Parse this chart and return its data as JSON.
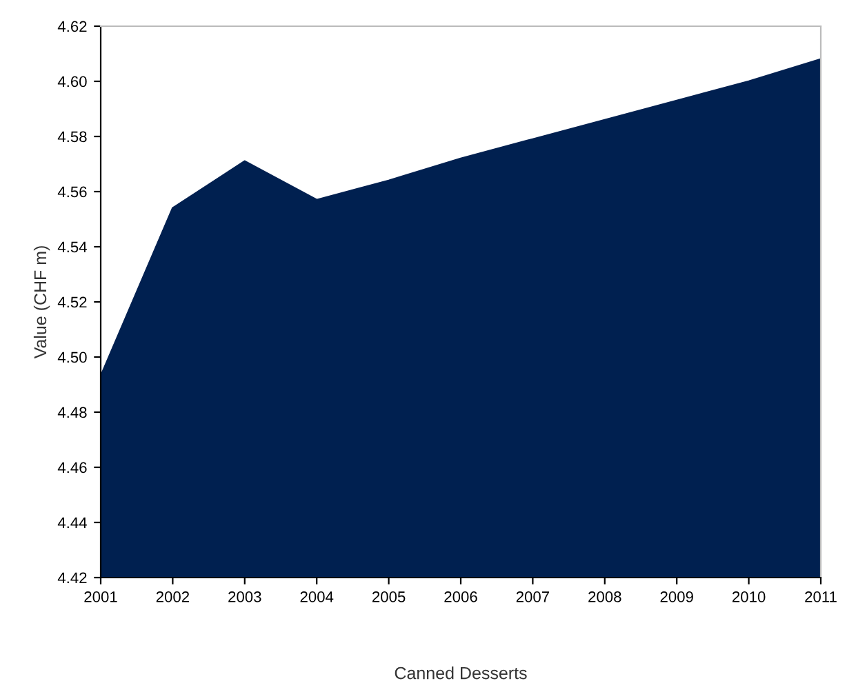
{
  "chart_data": {
    "type": "area",
    "xlabel": "Canned Desserts",
    "ylabel": "Value (CHF m)",
    "x": [
      2001,
      2002,
      2003,
      2004,
      2005,
      2006,
      2007,
      2008,
      2009,
      2010,
      2011
    ],
    "series": [
      {
        "color": "#002050",
        "values": [
          4.493,
          4.554,
          4.571,
          4.557,
          4.564,
          4.572,
          4.579,
          4.586,
          4.593,
          4.6,
          4.608
        ]
      }
    ],
    "xlim": [
      2001,
      2011
    ],
    "xticks": [
      2001,
      2002,
      2003,
      2004,
      2005,
      2006,
      2007,
      2008,
      2009,
      2010,
      2011
    ],
    "ylim": [
      4.42,
      4.62
    ],
    "yticks": [
      4.42,
      4.44,
      4.46,
      4.48,
      {
        "value": 4.5,
        "label": "4.50"
      },
      4.52,
      4.54,
      4.56,
      4.58,
      {
        "value": 4.6,
        "label": "4.60"
      },
      4.62
    ],
    "grid": false,
    "legend": false
  }
}
